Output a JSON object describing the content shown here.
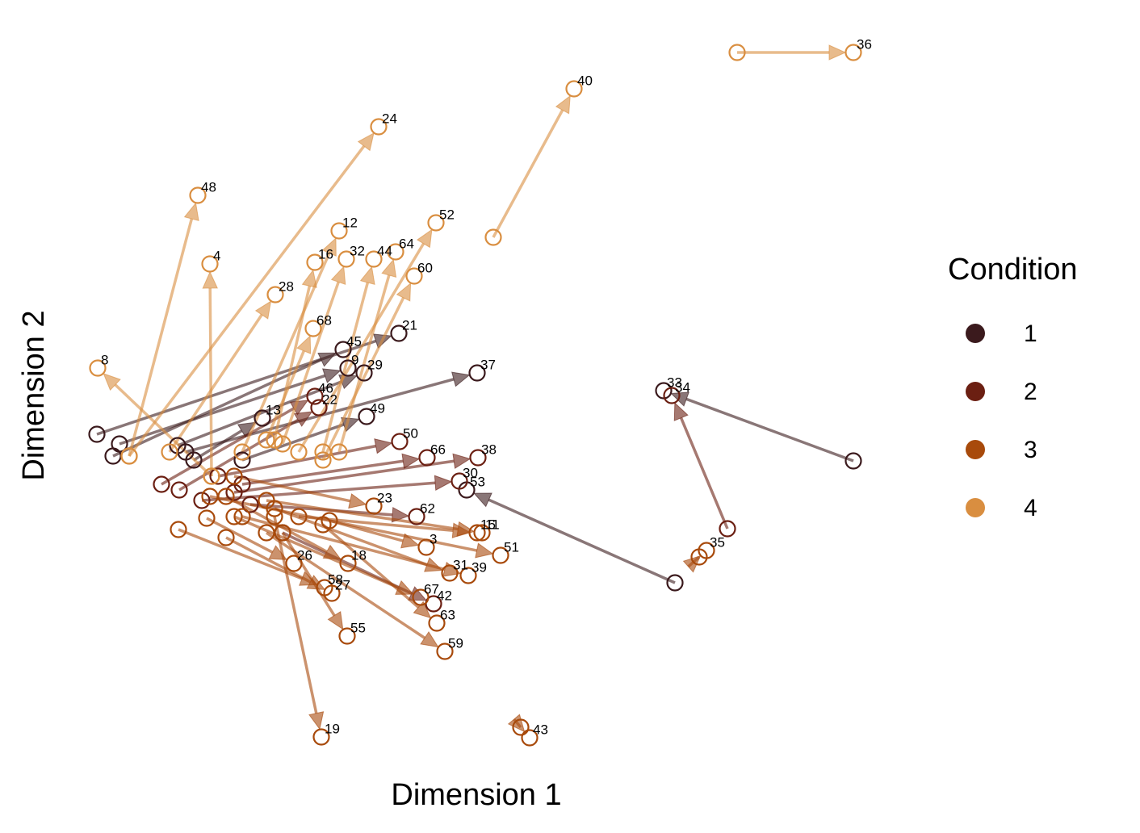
{
  "chart_data": {
    "type": "arrow-scatter",
    "x_label": "Dimension 1",
    "y_label": "Dimension 2",
    "legend_title": "Condition",
    "xlim": [
      100,
      1080
    ],
    "ylim": [
      70,
      960
    ],
    "grid": false,
    "series": [
      {
        "name": "1",
        "color": "#3b1a1d",
        "labels": [
          "21",
          "37",
          "33",
          "45",
          "29",
          "9",
          "49",
          "53",
          "13"
        ],
        "x0": [
          120,
          230,
          1057,
          140,
          220,
          148,
          300,
          836,
          240
        ],
        "y0": [
          462,
          440,
          429,
          435,
          448,
          450,
          430,
          278,
          430
        ],
        "x": [
          494,
          591,
          822,
          425,
          451,
          431,
          454,
          578,
          325
        ],
        "y": [
          587,
          538,
          516,
          567,
          538,
          544,
          484,
          393,
          482
        ]
      },
      {
        "name": "2",
        "color": "#6b1f12",
        "labels": [
          "34",
          "46",
          "22",
          "50",
          "66",
          "38",
          "30",
          "62",
          "42"
        ],
        "x0": [
          901,
          200,
          222,
          270,
          300,
          290,
          250,
          310,
          350
        ],
        "y0": [
          345,
          400,
          393,
          410,
          400,
          390,
          380,
          375,
          340
        ],
        "x": [
          832,
          390,
          395,
          495,
          529,
          592,
          569,
          516,
          537
        ],
        "y": [
          510,
          509,
          495,
          453,
          433,
          433,
          404,
          360,
          252
        ]
      },
      {
        "name": "3",
        "color": "#a84a0b",
        "labels": [
          "19",
          "55",
          "59",
          "63",
          "67",
          "51",
          "39",
          "31",
          "11",
          "15",
          "3",
          "23",
          "43",
          "35",
          "18",
          "26",
          "58",
          "27"
        ],
        "x0": [
          340,
          350,
          330,
          400,
          290,
          260,
          300,
          340,
          330,
          370,
          408,
          290,
          645,
          866,
          280,
          256,
          221,
          280
        ],
        "y0": [
          360,
          340,
          340,
          350,
          360,
          385,
          360,
          370,
          380,
          360,
          355,
          410,
          99,
          310,
          385,
          358,
          344,
          334
        ],
        "x": [
          398,
          430,
          551,
          541,
          521,
          620,
          580,
          557,
          597,
          591,
          528,
          463,
          656,
          875,
          431,
          364,
          402,
          411
        ],
        "y": [
          87,
          212,
          193,
          228,
          260,
          312,
          287,
          290,
          340,
          340,
          322,
          373,
          86,
          318,
          302,
          302,
          272,
          265
        ]
      },
      {
        "name": "4",
        "color": "#d98e40",
        "labels": [
          "36",
          "40",
          "24",
          "48",
          "4",
          "8",
          "12",
          "16",
          "28",
          "32",
          "44",
          "64",
          "52",
          "60",
          "68"
        ],
        "x0": [
          913,
          611,
          160,
          160,
          262,
          262,
          300,
          340,
          210,
          350,
          400,
          420,
          370,
          400,
          330
        ],
        "y0": [
          935,
          706,
          435,
          435,
          410,
          410,
          440,
          455,
          440,
          450,
          440,
          440,
          440,
          430,
          455
        ],
        "x": [
          1057,
          711,
          469,
          245,
          260,
          121,
          420,
          390,
          341,
          429,
          463,
          490,
          540,
          513,
          388
        ],
        "y": [
          935,
          890,
          843,
          758,
          673,
          544,
          714,
          675,
          635,
          679,
          679,
          688,
          724,
          658,
          593
        ]
      }
    ]
  }
}
